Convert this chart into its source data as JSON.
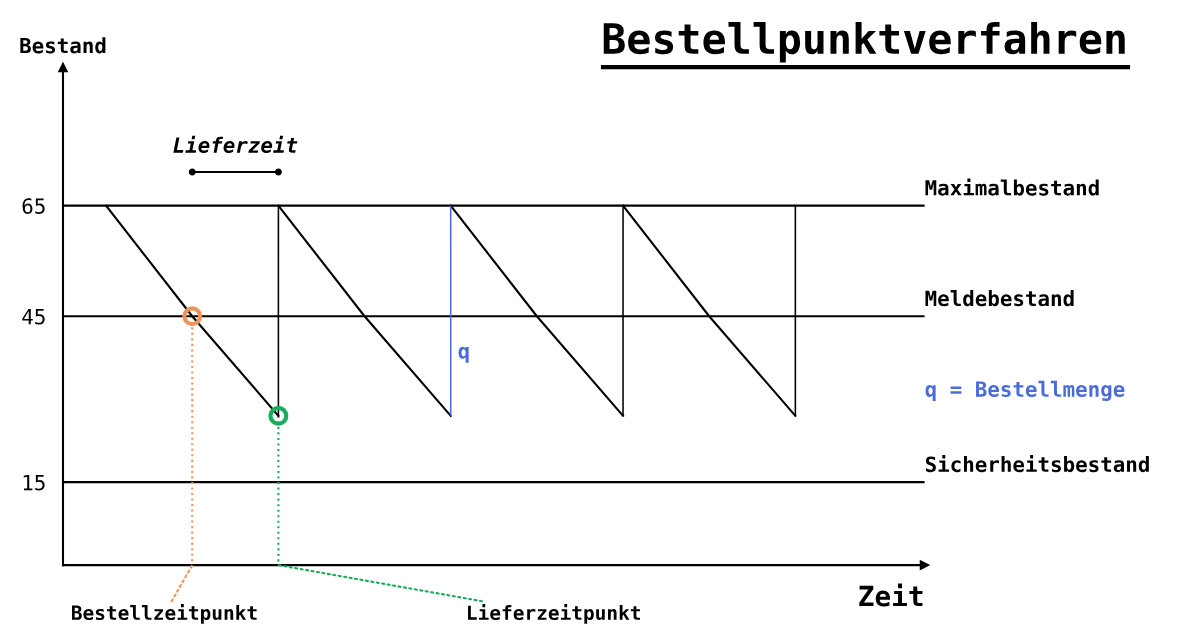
{
  "chart_data": {
    "type": "line",
    "title": "Bestellpunktverfahren",
    "xlabel": "Zeit",
    "ylabel": "Bestand",
    "categories": [
      null,
      null,
      null,
      null,
      null,
      null,
      null,
      null,
      null,
      null
    ],
    "series": [
      {
        "color": "#000000",
        "values": [
          65,
          45,
          27,
          null,
          null,
          null,
          null,
          null,
          null,
          null
        ]
      },
      {
        "color": "#000000",
        "values": [
          null,
          null,
          65,
          45,
          27,
          null,
          null,
          null,
          null,
          null
        ]
      },
      {
        "color": "#000000",
        "values": [
          null,
          null,
          null,
          null,
          65,
          45,
          27,
          null,
          null,
          null
        ]
      },
      {
        "color": "#000000",
        "values": [
          null,
          null,
          null,
          null,
          null,
          null,
          65,
          45,
          27,
          null
        ]
      },
      {
        "type": "bar",
        "color": "#000000",
        "base": [
          null,
          null,
          27,
          null,
          null,
          null,
          27,
          null,
          27,
          null
        ],
        "values": [
          null,
          null,
          38,
          null,
          null,
          null,
          38,
          null,
          38,
          null
        ]
      },
      {
        "type": "bar",
        "name": "q",
        "color": "#4a6cd8",
        "base": [
          null,
          null,
          null,
          null,
          27,
          null,
          null,
          null,
          null,
          null
        ],
        "values": [
          null,
          null,
          null,
          null,
          38,
          null,
          null,
          null,
          null,
          null
        ]
      },
      {
        "type": "scatter",
        "marker": "circle",
        "color": "#f0955a",
        "values": [
          null,
          45,
          null,
          null,
          null,
          null,
          null,
          null,
          null,
          null
        ]
      },
      {
        "type": "scatter",
        "marker": "circle",
        "color": "#1aab5c",
        "values": [
          null,
          null,
          27,
          null,
          null,
          null,
          null,
          null,
          null,
          null
        ]
      }
    ],
    "ref_lines": [
      {
        "axis": "y",
        "value": 65,
        "label": "Maximalbestand",
        "color": "#000000"
      },
      {
        "axis": "y",
        "value": 45,
        "label": "Meldebestand",
        "color": "#000000"
      },
      {
        "axis": "y",
        "value": 15,
        "label": "Sicherheitsbestand",
        "color": "#000000"
      }
    ],
    "annotations": [
      "Lieferzeit",
      "Bestellzeitpunkt",
      "Lieferzeitpunkt",
      "q = Bestellmenge"
    ],
    "ylim": [
      0,
      90
    ],
    "yticks": [
      15,
      45,
      65
    ],
    "grid": false,
    "legend": false,
    "line_style": "solid"
  }
}
